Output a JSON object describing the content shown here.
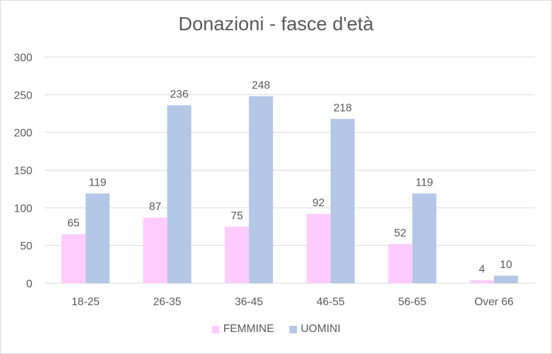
{
  "chart_data": {
    "type": "bar",
    "title": "Donazioni - fasce d'età",
    "xlabel": "",
    "ylabel": "",
    "categories": [
      "18-25",
      "26-35",
      "36-45",
      "46-55",
      "56-65",
      "Over 66"
    ],
    "series": [
      {
        "name": "FEMMINE",
        "color": "#ffccff",
        "values": [
          65,
          87,
          75,
          92,
          52,
          4
        ]
      },
      {
        "name": "UOMINI",
        "color": "#b4c7e7",
        "values": [
          119,
          236,
          248,
          218,
          119,
          10
        ]
      }
    ],
    "ylim": [
      0,
      300
    ],
    "yticks": [
      0,
      50,
      100,
      150,
      200,
      250,
      300
    ],
    "grid": true,
    "legend_position": "bottom"
  }
}
